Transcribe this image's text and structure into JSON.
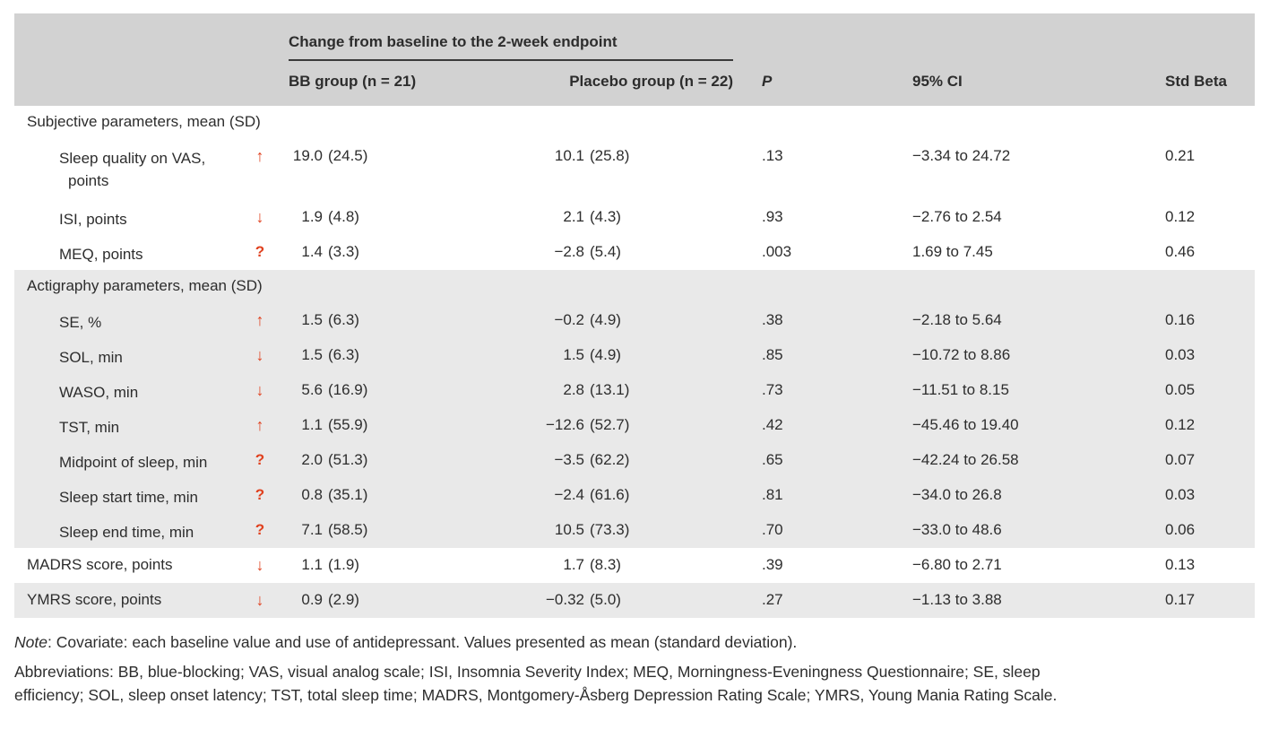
{
  "header": {
    "span_title": "Change from baseline to the 2-week endpoint",
    "columns": {
      "bb": "BB group (n = 21)",
      "placebo": "Placebo group (n = 22)",
      "p": "P",
      "ci": "95% CI",
      "beta": "Std Beta"
    }
  },
  "icons": {
    "up": "↑",
    "down": "↓",
    "question": "?"
  },
  "colors": {
    "header_band": "#d2d2d2",
    "section_band": "#e9e9e9",
    "accent_red": "#e0411f",
    "text": "#2d2d2d"
  },
  "table": {
    "rows": [
      {
        "type": "section",
        "label": "Subjective parameters, mean (SD)",
        "shaded": false
      },
      {
        "type": "data",
        "indent": true,
        "tall": true,
        "shaded": false,
        "label": "Sleep quality on VAS, points",
        "arrow": "up",
        "bb_mean": "19.0",
        "bb_sd": "(24.5)",
        "placebo_mean": "10.1",
        "placebo_sd": "(25.8)",
        "p": ".13",
        "ci": "−3.34 to 24.72",
        "beta": "0.21"
      },
      {
        "type": "data",
        "indent": true,
        "shaded": false,
        "label": "ISI, points",
        "arrow": "down",
        "bb_mean": "1.9",
        "bb_sd": "(4.8)",
        "placebo_mean": "2.1",
        "placebo_sd": "(4.3)",
        "p": ".93",
        "ci": "−2.76 to 2.54",
        "beta": "0.12"
      },
      {
        "type": "data",
        "indent": true,
        "shaded": false,
        "label": "MEQ, points",
        "arrow": "question",
        "bb_mean": "1.4",
        "bb_sd": "(3.3)",
        "placebo_mean": "−2.8",
        "placebo_sd": "(5.4)",
        "p": ".003",
        "ci": "1.69 to 7.45",
        "beta": "0.46"
      },
      {
        "type": "section",
        "label": "Actigraphy parameters, mean (SD)",
        "shaded": true
      },
      {
        "type": "data",
        "indent": true,
        "shaded": true,
        "label": "SE, %",
        "arrow": "up",
        "bb_mean": "1.5",
        "bb_sd": "(6.3)",
        "placebo_mean": "−0.2",
        "placebo_sd": "(4.9)",
        "p": ".38",
        "ci": "−2.18 to 5.64",
        "beta": "0.16"
      },
      {
        "type": "data",
        "indent": true,
        "shaded": true,
        "label": "SOL, min",
        "arrow": "down",
        "bb_mean": "1.5",
        "bb_sd": "(6.3)",
        "placebo_mean": "1.5",
        "placebo_sd": "(4.9)",
        "p": ".85",
        "ci": "−10.72 to 8.86",
        "beta": "0.03"
      },
      {
        "type": "data",
        "indent": true,
        "shaded": true,
        "label": "WASO, min",
        "arrow": "down",
        "bb_mean": "5.6",
        "bb_sd": "(16.9)",
        "placebo_mean": "2.8",
        "placebo_sd": "(13.1)",
        "p": ".73",
        "ci": "−11.51 to 8.15",
        "beta": "0.05"
      },
      {
        "type": "data",
        "indent": true,
        "shaded": true,
        "label": "TST, min",
        "arrow": "up",
        "bb_mean": "1.1",
        "bb_sd": "(55.9)",
        "placebo_mean": "−12.6",
        "placebo_sd": "(52.7)",
        "p": ".42",
        "ci": "−45.46 to 19.40",
        "beta": "0.12"
      },
      {
        "type": "data",
        "indent": true,
        "shaded": true,
        "label": "Midpoint of sleep, min",
        "arrow": "question",
        "bb_mean": "2.0",
        "bb_sd": "(51.3)",
        "placebo_mean": "−3.5",
        "placebo_sd": "(62.2)",
        "p": ".65",
        "ci": "−42.24 to 26.58",
        "beta": "0.07"
      },
      {
        "type": "data",
        "indent": true,
        "shaded": true,
        "label": "Sleep start time, min",
        "arrow": "question",
        "bb_mean": "0.8",
        "bb_sd": "(35.1)",
        "placebo_mean": "−2.4",
        "placebo_sd": "(61.6)",
        "p": ".81",
        "ci": "−34.0 to 26.8",
        "beta": "0.03"
      },
      {
        "type": "data",
        "indent": true,
        "shaded": true,
        "label": "Sleep end time, min",
        "arrow": "question",
        "bb_mean": "7.1",
        "bb_sd": "(58.5)",
        "placebo_mean": "10.5",
        "placebo_sd": "(73.3)",
        "p": ".70",
        "ci": "−33.0 to 48.6",
        "beta": "0.06"
      },
      {
        "type": "data",
        "indent": false,
        "shaded": false,
        "label": "MADRS score, points",
        "arrow": "down",
        "bb_mean": "1.1",
        "bb_sd": "(1.9)",
        "placebo_mean": "1.7",
        "placebo_sd": "(8.3)",
        "p": ".39",
        "ci": "−6.80 to 2.71",
        "beta": "0.13"
      },
      {
        "type": "data",
        "indent": false,
        "shaded": true,
        "label": "YMRS score, points",
        "arrow": "down",
        "bb_mean": "0.9",
        "bb_sd": "(2.9)",
        "placebo_mean": "−0.32",
        "placebo_sd": "(5.0)",
        "p": ".27",
        "ci": "−1.13 to 3.88",
        "beta": "0.17"
      }
    ]
  },
  "notes": {
    "note_label": "Note",
    "note_text": ": Covariate: each baseline value and use of antidepressant. Values presented as mean (standard deviation).",
    "abbrev_line1": "Abbreviations: BB, blue-blocking; VAS, visual analog scale; ISI, Insomnia Severity Index; MEQ, Morningness-Eveningness Questionnaire; SE, sleep",
    "abbrev_line2": "efficiency; SOL, sleep onset latency; TST, total sleep time; MADRS, Montgomery-Åsberg Depression Rating Scale; YMRS, Young Mania Rating Scale."
  }
}
